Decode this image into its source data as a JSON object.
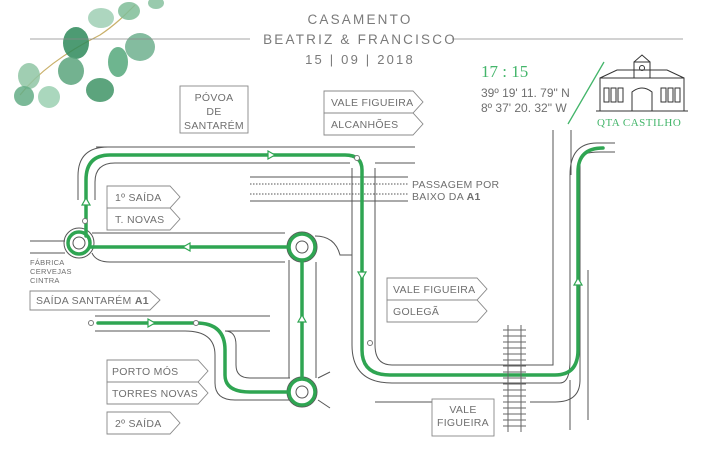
{
  "header": {
    "line1": "CASAMENTO",
    "line2": "BEATRIZ & FRANCISCO",
    "date": "15 | 09 | 2018"
  },
  "venue": {
    "time": "17 : 15",
    "lat": "39º 19' 11. 79\" N",
    "lon": "8º 37' 20. 32\" W",
    "name": "QTA CASTILHO",
    "accent": "#43b56a"
  },
  "places": {
    "povoa": [
      "PÓVOA",
      "DE",
      "SANTARÉM"
    ],
    "fabrica": [
      "FÁBRICA",
      "CERVEJAS",
      "CINTRA"
    ],
    "passagem": "PASSAGEM POR",
    "passagem2": "BAIXO DA",
    "passagem_bold": "A1"
  },
  "signs": {
    "vale_figueira_top": "VALE FIGUEIRA",
    "alcanhoes": "ALCANHÕES",
    "saida1": "1º SAÍDA",
    "tnovas": "T. NOVAS",
    "saida_santarem": "SAÍDA SANTARÉM",
    "saida_santarem_bold": "A1",
    "porto_mos": "PORTO MÓS",
    "torres_novas": "TORRES NOVAS",
    "saida2": "2º SAÍDA",
    "vale_figueira_mid": "VALE FIGUEIRA",
    "golega": "GOLEGÃ",
    "vale_figueira_bottom": [
      "VALE",
      "FIGUEIRA"
    ]
  }
}
